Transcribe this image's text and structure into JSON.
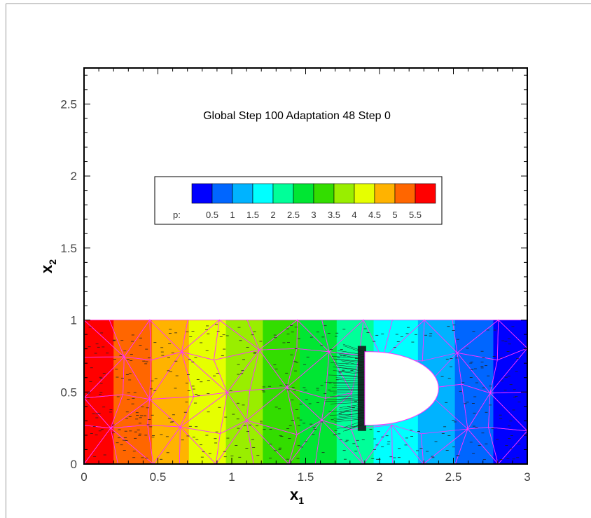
{
  "chart_data": {
    "type": "heatmap",
    "title": "Global Step 100  Adaptation 48 Step 0",
    "xlabel": "x",
    "xlabel_sub": "1",
    "ylabel": "x",
    "ylabel_sub": "2",
    "xlim": [
      0,
      3
    ],
    "ylim": [
      0,
      2.75
    ],
    "xticks": [
      "0",
      "0.5",
      "1",
      "1.5",
      "2",
      "2.5",
      "3"
    ],
    "yticks": [
      "0",
      "0.5",
      "1",
      "1.5",
      "2",
      "2.5"
    ],
    "domain": {
      "x": [
        0,
        3
      ],
      "y": [
        0,
        1
      ]
    },
    "obstacle": {
      "type": "half-ellipse",
      "flat_edge_x": 1.9,
      "nose_x": 2.4,
      "y_bottom": 0.27,
      "y_top": 0.78
    },
    "field_variable": "p",
    "colorbar": {
      "label": "p:",
      "ticks": [
        "0.5",
        "1",
        "1.5",
        "2",
        "2.5",
        "3",
        "3.5",
        "4",
        "4.5",
        "5",
        "5.5"
      ],
      "colors": [
        "#0000ff",
        "#0066ff",
        "#00b3ff",
        "#00ffff",
        "#00ff99",
        "#00e633",
        "#33dd00",
        "#99ee00",
        "#e6ff00",
        "#ffb300",
        "#ff6600",
        "#ff0000"
      ]
    },
    "bands": [
      {
        "x0": 0.0,
        "x1": 0.2,
        "color": "#ff0000"
      },
      {
        "x0": 0.2,
        "x1": 0.46,
        "color": "#ff6600"
      },
      {
        "x0": 0.46,
        "x1": 0.71,
        "color": "#ffb300"
      },
      {
        "x0": 0.71,
        "x1": 0.96,
        "color": "#e6ff00"
      },
      {
        "x0": 0.96,
        "x1": 1.21,
        "color": "#99ee00"
      },
      {
        "x0": 1.21,
        "x1": 1.46,
        "color": "#33dd00"
      },
      {
        "x0": 1.46,
        "x1": 1.71,
        "color": "#00e633"
      },
      {
        "x0": 1.71,
        "x1": 1.96,
        "color": "#00ff99"
      },
      {
        "x0": 1.96,
        "x1": 2.26,
        "color": "#00ffff"
      },
      {
        "x0": 2.26,
        "x1": 2.51,
        "color": "#00b3ff"
      },
      {
        "x0": 2.51,
        "x1": 2.77,
        "color": "#0066ff"
      },
      {
        "x0": 2.77,
        "x1": 3.0,
        "color": "#0000ff"
      }
    ],
    "mesh_color": "#ff33ff"
  }
}
